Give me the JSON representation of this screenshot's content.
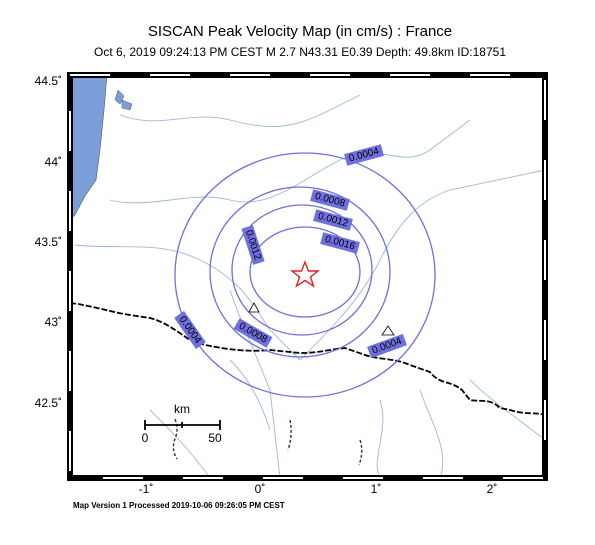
{
  "header": {
    "title": "SISCAN Peak Velocity Map (in cm/s) : France",
    "subtitle": "Oct  6, 2019 09:24:13 PM CEST   M 2.7   N43.31 E0.39   Depth: 49.8km   ID:18751"
  },
  "axes": {
    "lat_labels": [
      "44.5˚",
      "44˚",
      "43.5˚",
      "43˚",
      "42.5˚"
    ],
    "lon_labels": [
      "-1˚",
      "0˚",
      "1˚",
      "2˚"
    ]
  },
  "contours": [
    "0.0004",
    "0.0008",
    "0.0012",
    "0.0016",
    "0.0012",
    "0.0004",
    "0.0008",
    "0.0004"
  ],
  "scale_bar": {
    "unit": "km",
    "start": "0",
    "end": "50"
  },
  "footer": "Map Version 1 Processed 2019-10-06 09:26:05 PM CEST"
}
